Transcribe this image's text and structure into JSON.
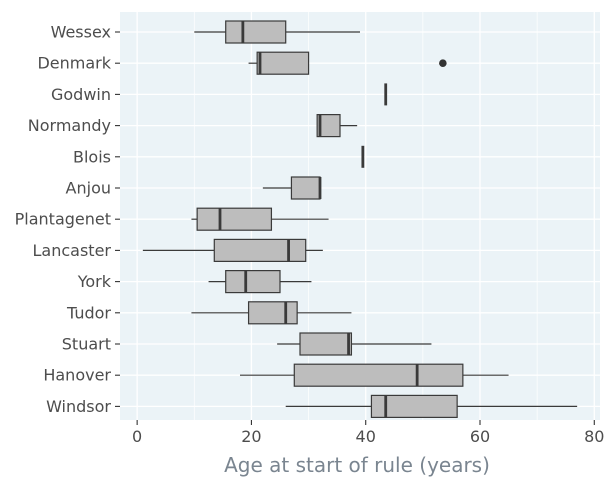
{
  "chart_data": {
    "type": "boxplot",
    "orientation": "horizontal",
    "xlabel": "Age at start of rule (years)",
    "ylabel": "",
    "xlim": [
      -3,
      81
    ],
    "xticks": [
      0,
      20,
      40,
      60,
      80
    ],
    "grid": true,
    "colors": {
      "panel": "#ebf3f7",
      "grid": "#ffffff",
      "box_fill": "#bdbdbd",
      "box_stroke": "#3a3a3a",
      "outlier": "#333333"
    },
    "categories": [
      "Wessex",
      "Denmark",
      "Godwin",
      "Normandy",
      "Blois",
      "Anjou",
      "Plantagenet",
      "Lancaster",
      "York",
      "Tudor",
      "Stuart",
      "Hanover",
      "Windsor"
    ],
    "boxes": [
      {
        "category": "Wessex",
        "min": 10,
        "q1": 15.5,
        "median": 18.5,
        "q3": 26,
        "max": 39,
        "outliers": []
      },
      {
        "category": "Denmark",
        "min": 19.5,
        "q1": 21,
        "median": 21.5,
        "q3": 30,
        "max": 30,
        "outliers": [
          53.5
        ]
      },
      {
        "category": "Godwin",
        "min": 43.5,
        "q1": 43.5,
        "median": 43.5,
        "q3": 43.5,
        "max": 43.5,
        "outliers": []
      },
      {
        "category": "Normandy",
        "min": 31.5,
        "q1": 31.5,
        "median": 32,
        "q3": 35.5,
        "max": 38.5,
        "outliers": []
      },
      {
        "category": "Blois",
        "min": 39.5,
        "q1": 39.5,
        "median": 39.5,
        "q3": 39.5,
        "max": 39.5,
        "outliers": []
      },
      {
        "category": "Anjou",
        "min": 22,
        "q1": 27,
        "median": 32,
        "q3": 32,
        "max": 32,
        "outliers": []
      },
      {
        "category": "Plantagenet",
        "min": 9.5,
        "q1": 10.5,
        "median": 14.5,
        "q3": 23.5,
        "max": 33.5,
        "outliers": []
      },
      {
        "category": "Lancaster",
        "min": 1,
        "q1": 13.5,
        "median": 26.5,
        "q3": 29.5,
        "max": 32.5,
        "outliers": []
      },
      {
        "category": "York",
        "min": 12.5,
        "q1": 15.5,
        "median": 19,
        "q3": 25,
        "max": 30.5,
        "outliers": []
      },
      {
        "category": "Tudor",
        "min": 9.5,
        "q1": 19.5,
        "median": 26,
        "q3": 28,
        "max": 37.5,
        "outliers": []
      },
      {
        "category": "Stuart",
        "min": 24.5,
        "q1": 28.5,
        "median": 37,
        "q3": 37.5,
        "max": 51.5,
        "outliers": []
      },
      {
        "category": "Hanover",
        "min": 18,
        "q1": 27.5,
        "median": 49,
        "q3": 57,
        "max": 65,
        "outliers": []
      },
      {
        "category": "Windsor",
        "min": 26,
        "q1": 41,
        "median": 43.5,
        "q3": 56,
        "max": 77,
        "outliers": []
      }
    ]
  }
}
